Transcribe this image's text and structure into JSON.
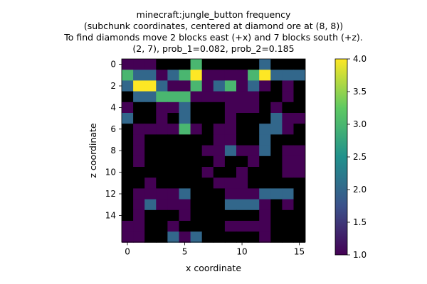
{
  "chart_data": {
    "type": "heatmap",
    "title_lines": [
      "minecraft:jungle_button frequency",
      "(subchunk coordinates, centered at diamond ore at (8, 8))",
      "To find diamonds move 2 blocks east (+x) and 7 blocks south (+z).",
      "(2, 7), prob_1=0.082, prob_2=0.185"
    ],
    "xlabel": "x coordinate",
    "ylabel": "z coordinate",
    "x_ticks": [
      0,
      5,
      10,
      15
    ],
    "y_ticks": [
      0,
      2,
      4,
      6,
      8,
      10,
      12,
      14
    ],
    "colorbar_ticks": [
      "1.0",
      "1.5",
      "2.0",
      "2.5",
      "3.0",
      "3.5",
      "4.0"
    ],
    "vmin": 1,
    "vmax": 4,
    "colormap": "viridis",
    "grid": false,
    "values": [
      [
        1,
        1,
        1,
        0,
        0,
        0,
        3,
        0,
        0,
        0,
        0,
        0,
        2,
        0,
        0,
        0
      ],
      [
        3,
        2,
        2,
        1,
        2,
        3,
        4,
        1,
        1,
        1,
        1,
        3,
        4,
        2,
        2,
        2
      ],
      [
        2,
        4,
        4,
        2,
        1,
        1,
        3,
        1,
        2,
        3,
        1,
        2,
        1,
        0,
        1,
        0
      ],
      [
        0,
        2,
        2,
        3,
        3,
        3,
        1,
        1,
        1,
        1,
        1,
        1,
        0,
        0,
        1,
        0
      ],
      [
        1,
        0,
        0,
        1,
        1,
        2,
        0,
        0,
        0,
        1,
        1,
        1,
        0,
        1,
        0,
        0
      ],
      [
        2,
        0,
        0,
        1,
        0,
        2,
        0,
        0,
        0,
        1,
        0,
        0,
        0,
        2,
        1,
        1
      ],
      [
        0,
        1,
        1,
        1,
        1,
        3,
        1,
        0,
        1,
        1,
        0,
        0,
        2,
        2,
        1,
        0
      ],
      [
        0,
        1,
        0,
        0,
        0,
        0,
        0,
        0,
        1,
        1,
        0,
        0,
        2,
        0,
        0,
        0
      ],
      [
        0,
        1,
        0,
        0,
        0,
        0,
        0,
        1,
        1,
        2,
        1,
        1,
        2,
        0,
        1,
        1
      ],
      [
        0,
        1,
        0,
        0,
        0,
        0,
        0,
        0,
        1,
        0,
        0,
        1,
        0,
        0,
        1,
        1
      ],
      [
        0,
        0,
        0,
        0,
        0,
        0,
        0,
        1,
        0,
        0,
        1,
        0,
        0,
        0,
        1,
        1
      ],
      [
        0,
        0,
        1,
        0,
        0,
        0,
        0,
        0,
        1,
        1,
        1,
        0,
        0,
        0,
        0,
        0
      ],
      [
        0,
        1,
        1,
        1,
        1,
        2,
        0,
        0,
        0,
        1,
        1,
        1,
        2,
        2,
        2,
        0
      ],
      [
        0,
        1,
        2,
        1,
        1,
        1,
        0,
        0,
        0,
        2,
        2,
        2,
        1,
        0,
        1,
        0
      ],
      [
        0,
        1,
        0,
        0,
        0,
        1,
        0,
        0,
        0,
        0,
        0,
        0,
        1,
        0,
        0,
        0
      ],
      [
        1,
        1,
        0,
        0,
        1,
        0,
        0,
        0,
        0,
        1,
        1,
        1,
        1,
        0,
        0,
        0
      ],
      [
        1,
        1,
        0,
        0,
        2,
        1,
        2,
        0,
        0,
        0,
        0,
        0,
        1,
        0,
        0,
        0
      ]
    ]
  }
}
